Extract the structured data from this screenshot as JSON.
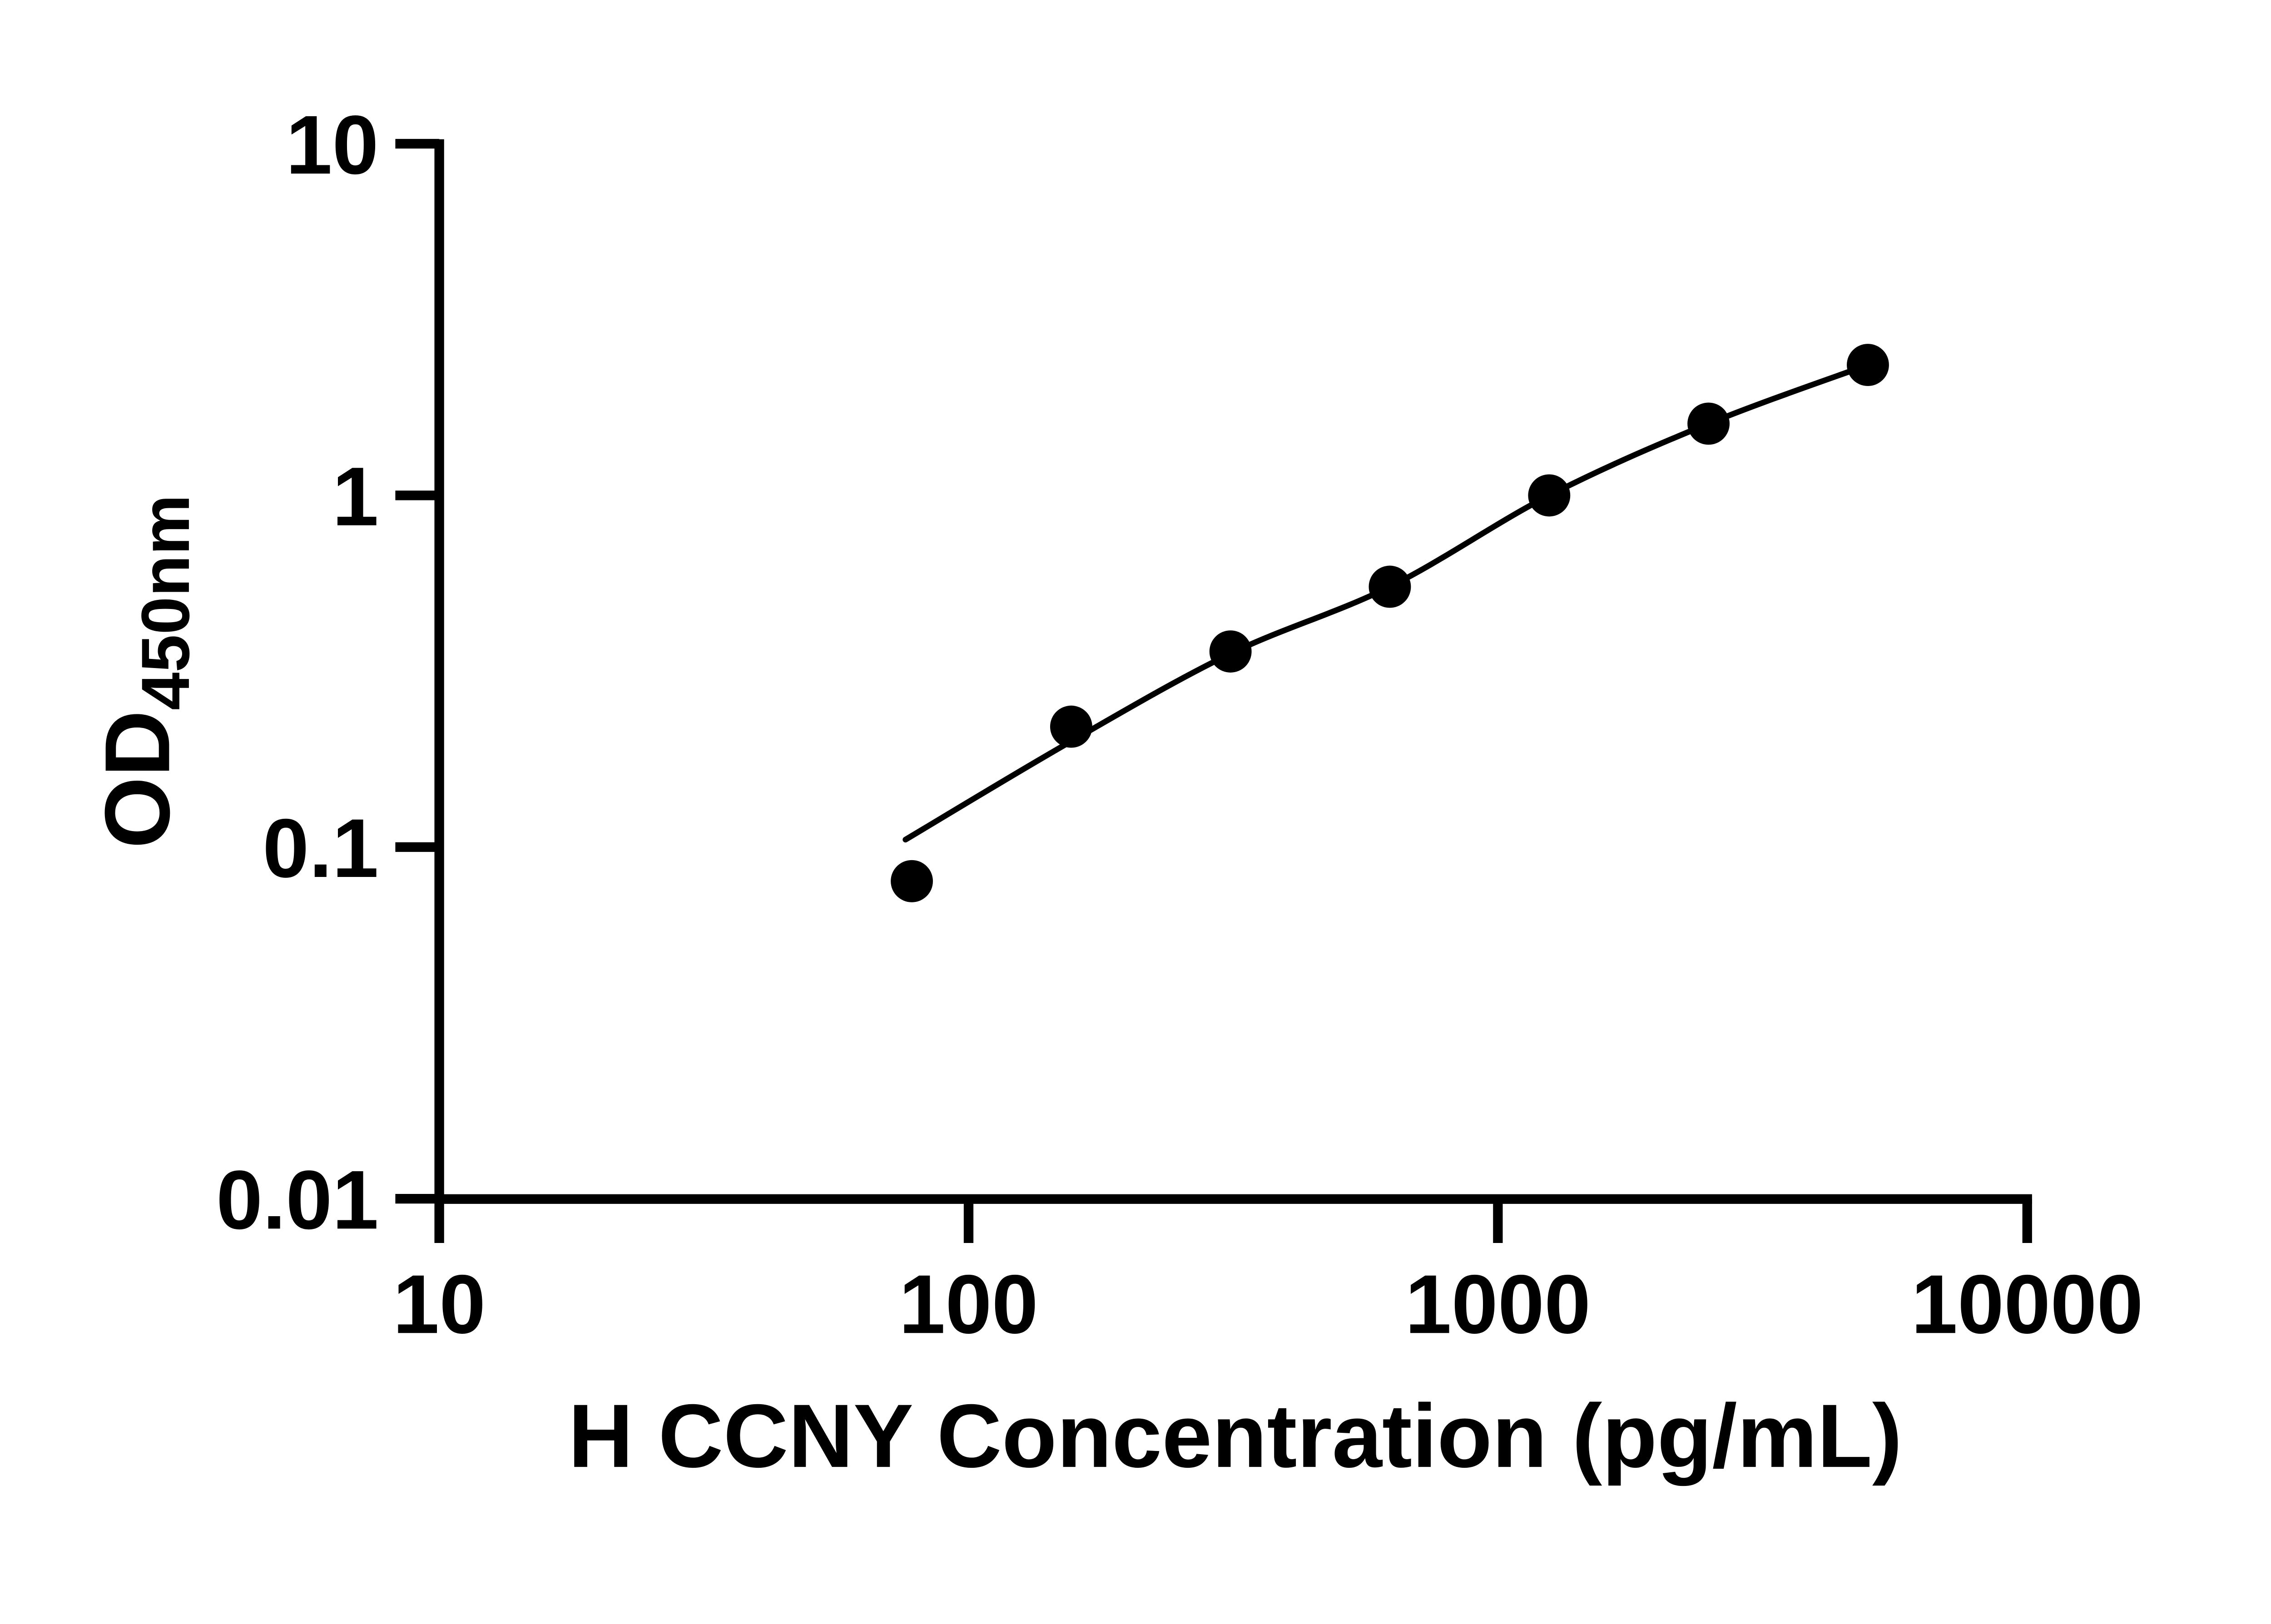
{
  "figure": {
    "background": "#ffffff",
    "ink": "#000000"
  },
  "chart_data": {
    "type": "scatter",
    "title": "",
    "xlabel": "H CCNY Concentration (pg/mL)",
    "ylabel": {
      "main": "OD",
      "subscript": "450nm"
    },
    "x_scale": "log10",
    "y_scale": "log10",
    "xlim": [
      10,
      10000
    ],
    "ylim": [
      0.01,
      10
    ],
    "grid": false,
    "legend": false,
    "x_ticks": [
      {
        "value": 10,
        "label": "10"
      },
      {
        "value": 100,
        "label": "100"
      },
      {
        "value": 1000,
        "label": "1000"
      },
      {
        "value": 10000,
        "label": "10000"
      }
    ],
    "y_ticks": [
      {
        "value": 10,
        "label": "10"
      },
      {
        "value": 1,
        "label": "1"
      },
      {
        "value": 0.1,
        "label": "0.1"
      },
      {
        "value": 0.01,
        "label": "0.01"
      }
    ],
    "series": [
      {
        "name": "H CCNY standard points",
        "marker": "filled-circle",
        "color": "#000000",
        "x": [
          78.125,
          156.25,
          312.5,
          625,
          1250,
          2500,
          5000
        ],
        "y": [
          0.08,
          0.22,
          0.36,
          0.55,
          1.0,
          1.6,
          2.35
        ]
      }
    ],
    "fit_curve": {
      "name": "fitted standard curve",
      "color": "#000000",
      "x": [
        76,
        156.25,
        312.5,
        625,
        1250,
        2500,
        5000
      ],
      "y": [
        0.105,
        0.2,
        0.355,
        0.55,
        1.0,
        1.6,
        2.35
      ]
    }
  }
}
